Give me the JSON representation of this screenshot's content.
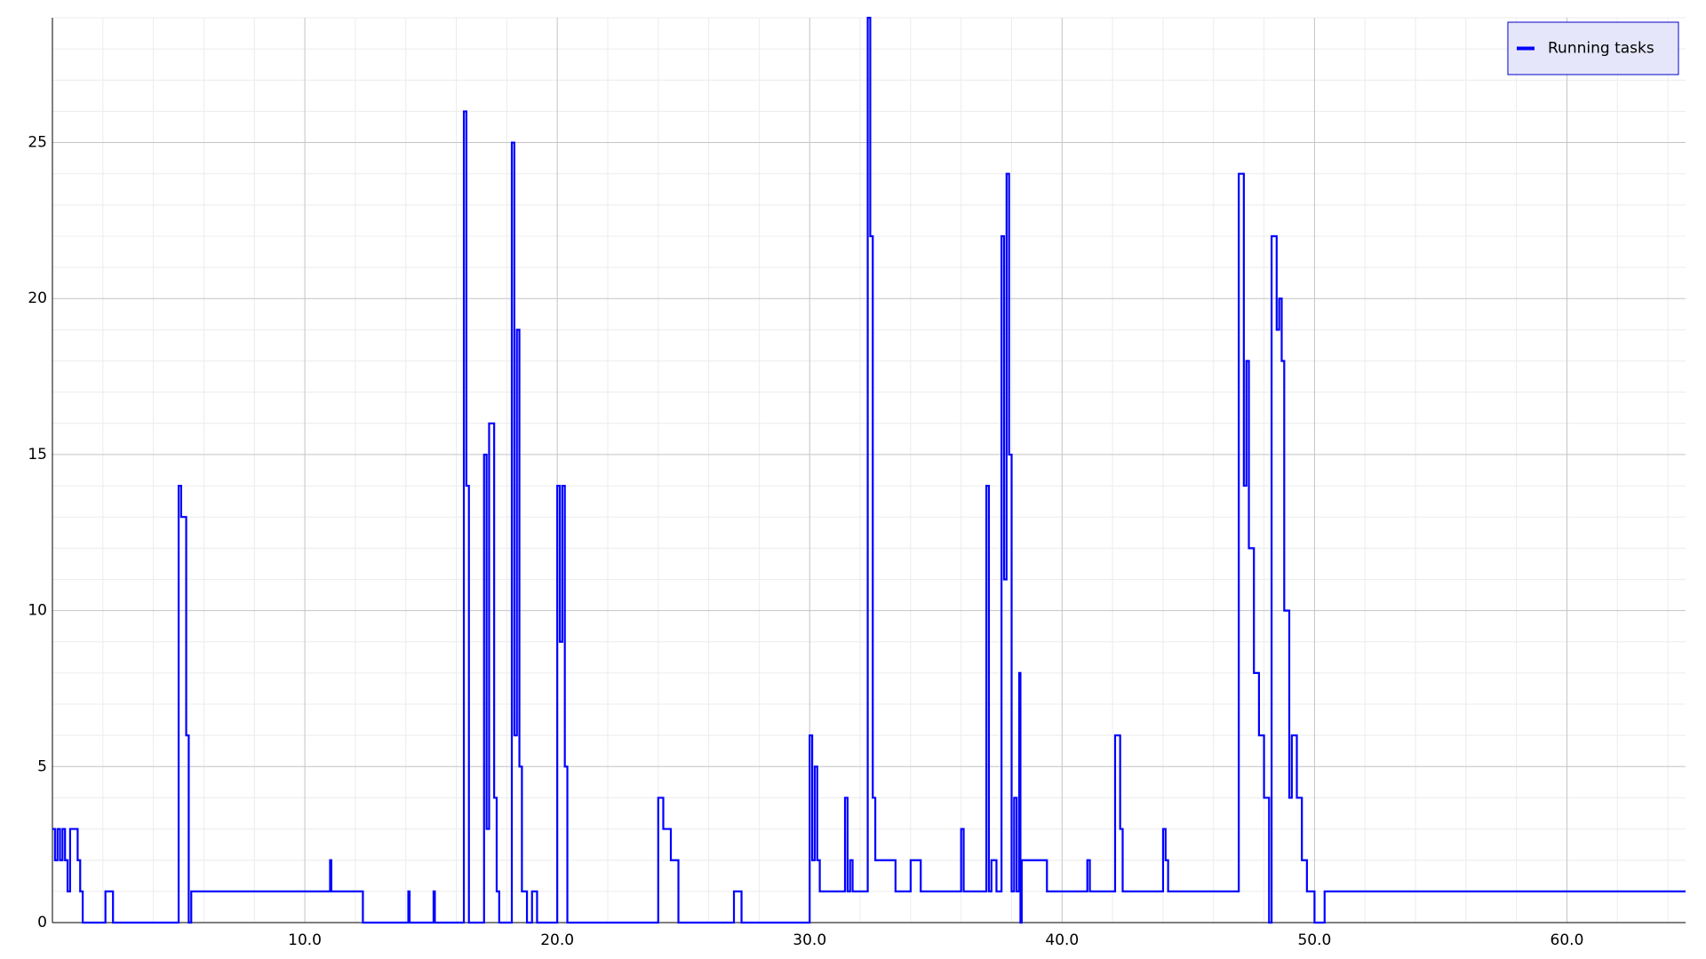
{
  "chart_data": {
    "type": "line",
    "step": true,
    "series": [
      {
        "name": "Running tasks",
        "color": "#0000ff",
        "x": [
          0.0,
          0.1,
          0.2,
          0.3,
          0.4,
          0.5,
          0.6,
          0.7,
          1.0,
          1.1,
          1.2,
          2.1,
          2.4,
          5.0,
          5.1,
          5.3,
          5.4,
          5.5,
          11.0,
          11.05,
          12.3,
          14.1,
          14.15,
          15.1,
          15.15,
          16.3,
          16.4,
          16.5,
          17.1,
          17.2,
          17.3,
          17.5,
          17.6,
          17.7,
          18.2,
          18.3,
          18.4,
          18.5,
          18.6,
          18.8,
          19.0,
          19.2,
          20.0,
          20.1,
          20.2,
          20.3,
          20.4,
          24.0,
          24.2,
          24.5,
          24.8,
          27.0,
          27.3,
          30.0,
          30.1,
          30.2,
          30.3,
          30.4,
          31.4,
          31.5,
          31.6,
          31.7,
          32.3,
          32.4,
          32.5,
          32.6,
          33.4,
          34.0,
          34.4,
          36.0,
          36.1,
          37.0,
          37.1,
          37.2,
          37.4,
          37.6,
          37.7,
          37.8,
          37.9,
          38.0,
          38.1,
          38.2,
          38.3,
          38.35,
          38.4,
          39.4,
          41.0,
          41.1,
          42.1,
          42.3,
          42.4,
          44.0,
          44.1,
          44.2,
          47.0,
          47.2,
          47.3,
          47.4,
          47.6,
          47.8,
          48.0,
          48.2,
          48.3,
          48.5,
          48.6,
          48.7,
          48.8,
          49.0,
          49.1,
          49.3,
          49.5,
          49.7,
          50.0,
          50.4,
          64.7
        ],
        "values": [
          3,
          2,
          3,
          2,
          3,
          2,
          1,
          3,
          2,
          1,
          0,
          1,
          0,
          14,
          13,
          6,
          0,
          1,
          2,
          1,
          0,
          1,
          0,
          1,
          0,
          26,
          14,
          0,
          15,
          3,
          16,
          4,
          1,
          0,
          25,
          6,
          19,
          5,
          1,
          0,
          1,
          0,
          14,
          9,
          14,
          5,
          0,
          4,
          3,
          2,
          0,
          1,
          0,
          6,
          2,
          5,
          2,
          1,
          4,
          1,
          2,
          1,
          29,
          22,
          4,
          2,
          1,
          2,
          1,
          3,
          1,
          14,
          1,
          2,
          1,
          22,
          11,
          24,
          15,
          1,
          4,
          1,
          8,
          0,
          2,
          1,
          2,
          1,
          6,
          3,
          1,
          3,
          2,
          1,
          24,
          14,
          18,
          12,
          8,
          6,
          4,
          0,
          22,
          19,
          20,
          18,
          10,
          4,
          6,
          4,
          2,
          1,
          0,
          1,
          1
        ]
      }
    ],
    "xlim": [
      0,
      64.7
    ],
    "ylim": [
      0,
      29
    ],
    "xticks": [
      {
        "value": 10,
        "label": "10.0"
      },
      {
        "value": 20,
        "label": "20.0"
      },
      {
        "value": 30,
        "label": "30.0"
      },
      {
        "value": 40,
        "label": "40.0"
      },
      {
        "value": 50,
        "label": "50.0"
      },
      {
        "value": 60,
        "label": "60.0"
      }
    ],
    "yticks": [
      0,
      5,
      10,
      15,
      20,
      25
    ],
    "xminorticks": [
      2,
      4,
      6,
      8,
      12,
      14,
      16,
      18,
      22,
      24,
      26,
      28,
      32,
      34,
      36,
      38,
      42,
      44,
      46,
      48,
      52,
      54,
      56,
      58,
      62,
      64
    ],
    "yminorticks": [
      1,
      2,
      3,
      4,
      6,
      7,
      8,
      9,
      11,
      12,
      13,
      14,
      16,
      17,
      18,
      19,
      21,
      22,
      23,
      24,
      26,
      27,
      28,
      29
    ],
    "grid": true,
    "legend": "upper right"
  }
}
